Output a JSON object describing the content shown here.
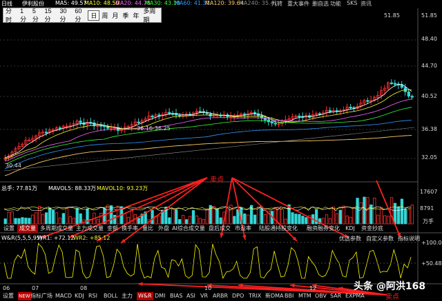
{
  "topbar": {
    "mode": "日线",
    "stock_name": "伊利股份",
    "ma5": "MA5: 49.57",
    "ma10": "MA10: 48.50",
    "ma20": "MA20: 44.78",
    "ma30": "MA30: 43.10",
    "ma60": "MA60: 41.31",
    "ma120": "MA120: 39.64",
    "ma240": "MA240: 35.41",
    "right_tabs": [
      "九转",
      "重大事件",
      "删自选",
      "功能",
      "SKS",
      "资讯"
    ]
  },
  "periods": {
    "items": [
      "分时",
      "1分",
      "5分",
      "15分",
      "30分",
      "60分",
      "日",
      "周",
      "月",
      "季",
      "年",
      "多周期"
    ],
    "active": "日"
  },
  "price_axis": [
    "51.85",
    "48.40",
    "44.70",
    "40.52",
    "36.38",
    "32.05"
  ],
  "annotations": {
    "peak": "51.85",
    "range": "36.16-36.25",
    "low_left": "30.44",
    "sell_top": "卖点",
    "sell_bottom": "卖点"
  },
  "volume": {
    "label": "总手: 77.81万",
    "mavol5": "MAVOL5: 88.33万",
    "mavol10": "MAVOL10: 93.23万",
    "axis_top": "17607",
    "axis_mid": "8791",
    "axis_unit": "万手"
  },
  "indicator_tabs": [
    "设置",
    "成交量",
    "多周期成交量",
    "主力成交量",
    "金额",
    "换手率",
    "量比",
    "外盘",
    "AI综合成交量",
    "盘后成交",
    "市盈率",
    "陆股通持股变化",
    "融资融券变化",
    "KDJ",
    "资金抄底"
  ],
  "indicator_active": "成交量",
  "wr": {
    "label": "W&R(5,5,5,95)",
    "wr1": "WR1: +72.12",
    "wr2": "WR2: +85.12",
    "right_buttons": [
      "优选参数",
      "自定义参数",
      "指标说明"
    ],
    "axis_top": "+100.0",
    "axis_mid": "+50.48"
  },
  "date_axis": [
    "06",
    "07",
    "08",
    "10",
    "12"
  ],
  "bottom_tabs": [
    "设置",
    "NEW",
    "指标广场",
    "MACD",
    "KDJ",
    "RSI",
    "BOLL",
    "主力",
    "W&R",
    "DMI",
    "BIAS",
    "ASI",
    "VR",
    "ARBR",
    "DPO",
    "TRIX",
    "新DMA",
    "BBI",
    "MTM",
    "OBV",
    "SAR",
    "EXPMA"
  ],
  "bottom_active": "W&R",
  "watermark": "头条 @阿洪168",
  "colors": {
    "up": "#ff3030",
    "down": "#33d6d6",
    "ma5": "#ffffff",
    "ma10": "#ffff33",
    "ma20": "#ff66ff",
    "ma30": "#33ff33",
    "ma60": "#3399ff",
    "ma120": "#ffcc66",
    "wr_line": "#ffff00",
    "arrow": "#ff2020"
  }
}
